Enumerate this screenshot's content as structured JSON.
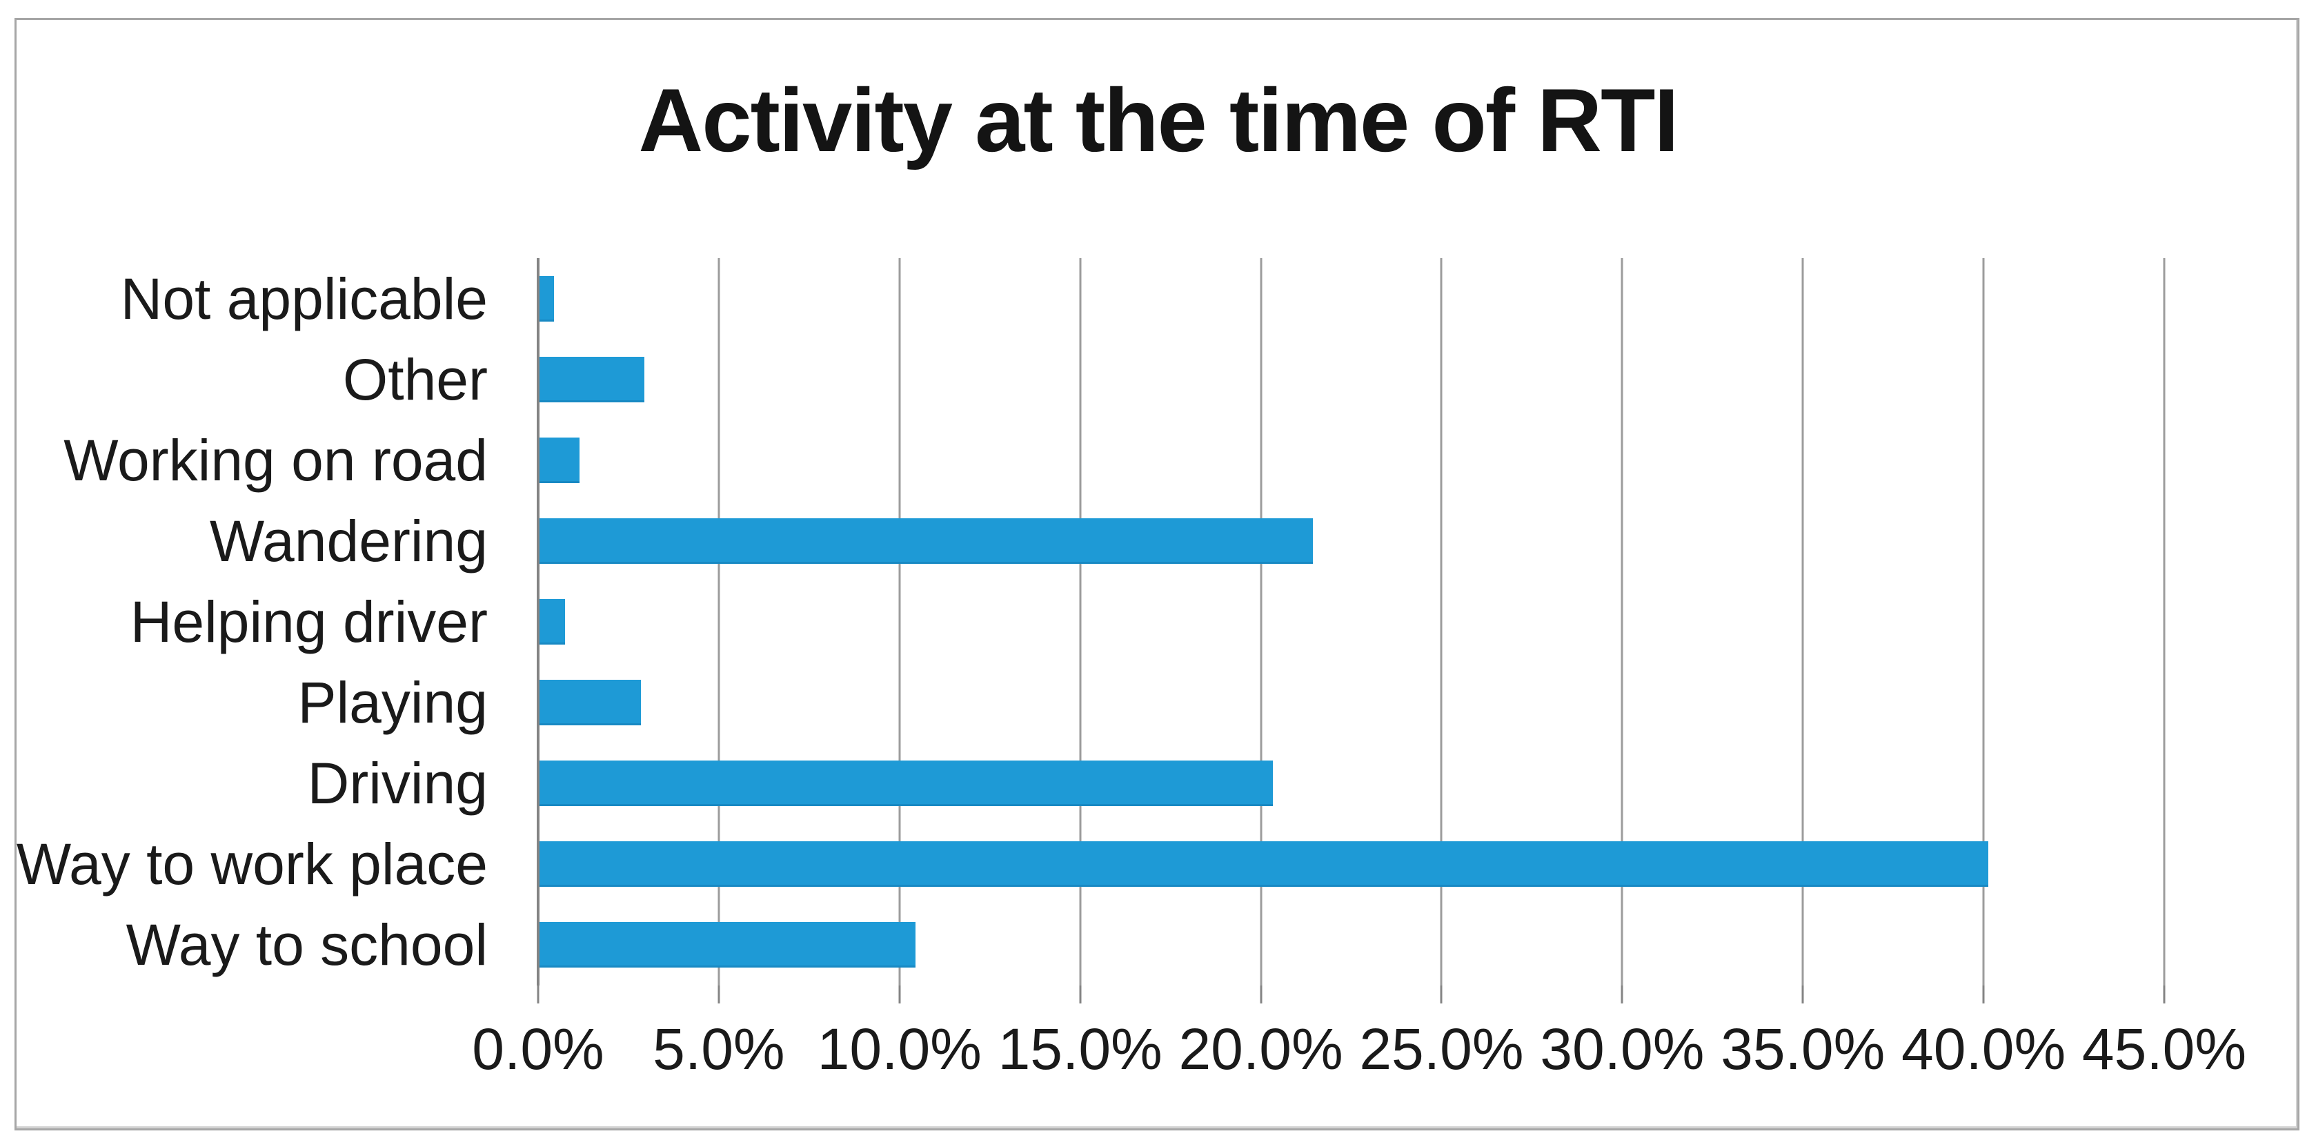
{
  "chart_data": {
    "type": "bar",
    "orientation": "horizontal",
    "title": "Activity at the time of RTI",
    "categories": [
      "Not applicable",
      "Other",
      "Working on road",
      "Wandering",
      "Helping driver",
      "Playing",
      "Driving",
      "Way to work place",
      "Way to school"
    ],
    "values": [
      0.4,
      2.9,
      1.1,
      21.4,
      0.7,
      2.8,
      20.3,
      40.1,
      10.4
    ],
    "unit": "%",
    "xlim": [
      0,
      45
    ],
    "x_tick_step": 5,
    "x_tick_labels": [
      "0.0%",
      "5.0%",
      "10.0%",
      "15.0%",
      "20.0%",
      "25.0%",
      "30.0%",
      "35.0%",
      "40.0%",
      "45.0%"
    ],
    "grid": true,
    "legend": false,
    "colors": {
      "bar": "#1e9ad6",
      "gridline": "#9c9c9c",
      "axis_line": "#848484",
      "text": "#1a1a1a",
      "frame_border": "#a6a6a6",
      "background": "#ffffff"
    }
  }
}
